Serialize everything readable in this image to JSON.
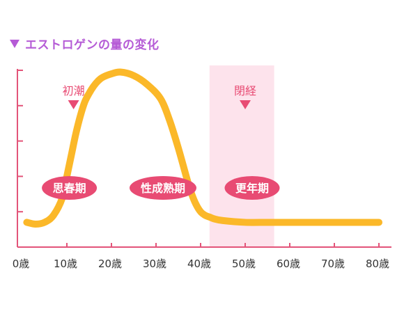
{
  "colors": {
    "title": "#b55bd6",
    "axis": "#e35479",
    "curve": "#fbb829",
    "band": "#fde3ec",
    "pill": "#e84b73",
    "marker": "#e84b73",
    "tick_text": "#333333"
  },
  "chart_data": {
    "type": "line",
    "title": "エストロゲンの量の変化",
    "xlabel": "",
    "ylabel": "",
    "xlim": [
      -3,
      83
    ],
    "ylim": [
      0,
      5
    ],
    "y_ticks": [
      0,
      1,
      2,
      3,
      4,
      5
    ],
    "x_ticks": [
      0,
      10,
      20,
      30,
      40,
      50,
      60,
      70,
      80
    ],
    "x_tick_labels": [
      "0歳",
      "10歳",
      "20歳",
      "30歳",
      "40歳",
      "50歳",
      "60歳",
      "70歳",
      "80歳"
    ],
    "grid": false,
    "legend": "none",
    "series": [
      {
        "x": [
          1,
          3,
          5,
          7,
          9,
          10,
          11,
          12,
          13,
          14,
          15,
          16,
          17,
          18,
          20,
          22,
          25,
          28,
          31,
          33,
          35,
          37,
          38,
          39,
          40,
          41,
          42,
          43,
          45,
          50,
          55,
          60,
          70,
          80
        ],
        "values": [
          0.7,
          0.65,
          0.7,
          0.9,
          1.4,
          2.0,
          2.6,
          3.2,
          3.7,
          4.1,
          4.35,
          4.55,
          4.7,
          4.8,
          4.9,
          4.95,
          4.85,
          4.6,
          4.2,
          3.6,
          2.8,
          1.9,
          1.5,
          1.2,
          1.0,
          0.9,
          0.85,
          0.8,
          0.75,
          0.7,
          0.7,
          0.7,
          0.7,
          0.7
        ]
      }
    ],
    "bands": [
      {
        "from": 42,
        "to": 56.5
      }
    ],
    "phase_labels": [
      {
        "text": "思春期",
        "x": 9
      },
      {
        "text": "性成熟期",
        "x": 30
      },
      {
        "text": "更年期",
        "x": 50
      }
    ],
    "event_markers": [
      {
        "text": "初潮",
        "x": 11.5
      },
      {
        "text": "閉経",
        "x": 50
      }
    ]
  }
}
